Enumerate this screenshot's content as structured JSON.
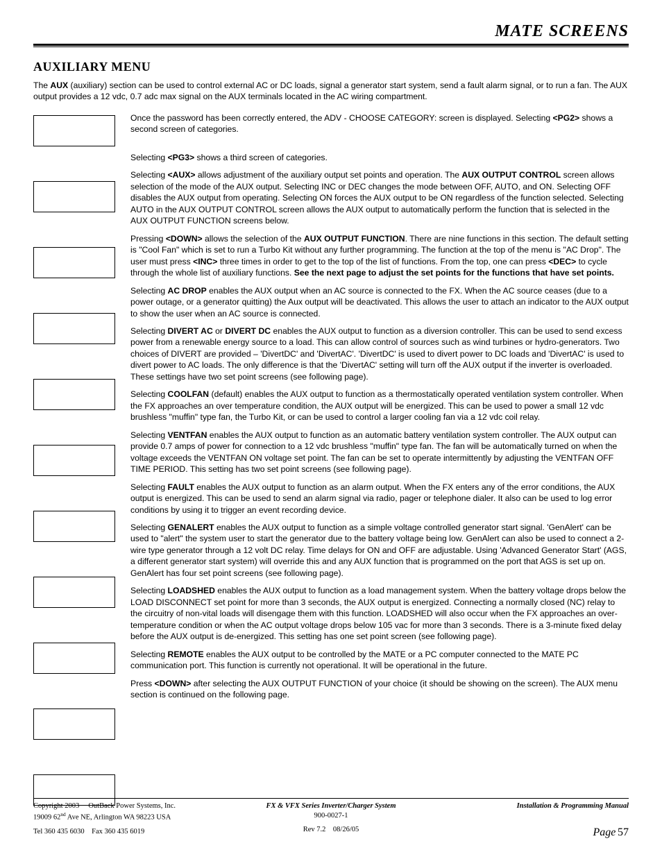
{
  "header": {
    "title": "MATE SCREENS"
  },
  "section": {
    "heading": "AUXILIARY MENU"
  },
  "intro": "The <b>AUX</b> (auxiliary) section can be used to control external AC or DC loads, signal a generator start system, send a fault alarm signal, or to run a fan.  The AUX output provides a 12 vdc, 0.7 adc max signal on the AUX terminals located in the AC wiring compartment.",
  "paragraphs": [
    "Once the password has been correctly entered, the ADV - CHOOSE CATEGORY: screen is displayed.  Selecting <b>&lt;PG2&gt;</b> shows a second screen of categories.",
    "Selecting <b>&lt;PG3&gt;</b> shows a third screen of categories.",
    "Selecting <b>&lt;AUX&gt;</b> allows adjustment of the auxiliary output set points and operation.  The <b>AUX OUTPUT CONTROL</b> screen allows selection of the mode of the AUX output.  Selecting INC or DEC changes the mode between OFF, AUTO, and ON.  Selecting OFF disables the AUX output from operating. Selecting ON forces the AUX output to be ON regardless of the function selected.  Selecting AUTO in the AUX OUTPUT CONTROL screen allows the AUX output to automatically perform the function that is selected in the AUX OUTPUT FUNCTION screens below.",
    "Pressing <b>&lt;DOWN&gt;</b> allows the selection of the <b>AUX OUTPUT FUNCTION</b>.  There are nine functions in this section.  The default setting is \"Cool Fan\" which is set to run a Turbo Kit without any further programming.  The function at the top of the menu is \"AC Drop\".  The user must press <b>&lt;INC&gt;</b> three times in order to get to the top of the list of functions.  From the top, one can press <b>&lt;DEC&gt;</b> to cycle through the whole list of auxiliary functions.  <b>See the next page to adjust the set points for the functions that have set points.</b>",
    "Selecting <b>AC DROP</b> enables the AUX output when an AC source is connected to the FX.  When the AC source ceases (due to a power outage, or a generator quitting) the Aux output will be deactivated.  This allows the user to attach an indicator to the AUX output to show the user when an AC source is connected.",
    "Selecting <b>DIVERT AC</b> or <b>DIVERT DC</b> enables the AUX output to function as a diversion controller.  This can be used to send excess power from a renewable energy source to a load.  This can allow control of sources such as wind turbines or hydro-generators.  Two choices of DIVERT are provided – 'DivertDC' and 'DivertAC'.  'DivertDC' is used to divert power to DC loads and 'DivertAC' is used to divert power to AC loads.  The only difference is that the 'DivertAC' setting will turn off the AUX output if the inverter is overloaded.  These settings have two set point screens (see following page).",
    "Selecting <b>COOLFAN</b> (default) enables the AUX output to function as a thermostatically operated ventilation system controller.  When the FX approaches an over temperature condition, the AUX output will be energized.  This can be used to power a small 12 vdc brushless \"muffin\" type fan, the Turbo Kit, or can be used to control a larger cooling fan via a 12 vdc coil relay.",
    "Selecting <b>VENTFAN</b> enables the AUX output to function as an automatic battery ventilation system controller.   The AUX output can provide 0.7 amps of power for connection to a 12 vdc brushless \"muffin\" type fan.  The fan will be automatically turned on when the voltage exceeds the VENTFAN ON voltage set point.  The fan can be set to operate intermittently by adjusting the VENTFAN OFF TIME PERIOD.  This setting has two set point screens (see following page).",
    "Selecting <b>FAULT</b> enables the AUX output to function as an alarm output.  When the FX enters any of the error conditions, the AUX output is energized.  This can be used to send an alarm signal via radio, pager or telephone dialer.  It also can be used to log error conditions by using it to trigger an event recording device.",
    "Selecting <b>GENALERT</b> enables the AUX output to function as a simple voltage controlled generator start signal.  'GenAlert' can be used to \"alert\" the system user to start the generator due to the battery voltage being low.  GenAlert can also be used to connect a 2-wire type generator through a 12 volt DC relay.  Time delays for ON and OFF are adjustable.  Using 'Advanced Generator Start' (AGS, a different generator start system) will override this and any AUX function that is programmed on the port that AGS is set up on.  GenAlert has four set point screens (see following page).",
    "Selecting <b>LOADSHED</b> enables the AUX output to function as a load management system.  When the battery voltage drops below the LOAD DISCONNECT set point for more than 3 seconds, the AUX output is energized.  Connecting a normally closed (NC) relay to the circuitry of non-vital loads will disengage them with this function.  LOADSHED will also occur when the FX approaches an over-temperature condition or when the AC output voltage drops below 105 vac for more than 3 seconds.  There is a 3-minute fixed delay before the AUX output is de-energized. This setting has one set point screen (see following page).",
    "Selecting <b>REMOTE</b> enables the AUX output to be controlled by the MATE or a PC computer connected to the MATE PC communication port.  This function is currently not operational.  It will be operational in the future.",
    "Press <b>&lt;DOWN&gt;</b> after selecting the AUX OUTPUT FUNCTION of your choice (it should be showing on the screen).  The AUX menu section is continued on the following page."
  ],
  "footer": {
    "copyright": "Copyright 2003 &nbsp;&nbsp;&nbsp; OutBack Power Systems, Inc.",
    "address": "19009 62<sup>nd</sup> Ave NE, Arlington  WA 98223 USA",
    "telfax": "Tel 360 435 6030 &nbsp;&nbsp; Fax 360 435 6019",
    "doc_title": "FX & VFX Series Inverter/Charger System",
    "doc_num": "900-0027-1",
    "rev": "Rev 7.2 &nbsp;&nbsp; 08/26/05",
    "manual_title": "Installation & Programming Manual",
    "page_label": "Page",
    "page_num": "57"
  },
  "box_count": 11
}
